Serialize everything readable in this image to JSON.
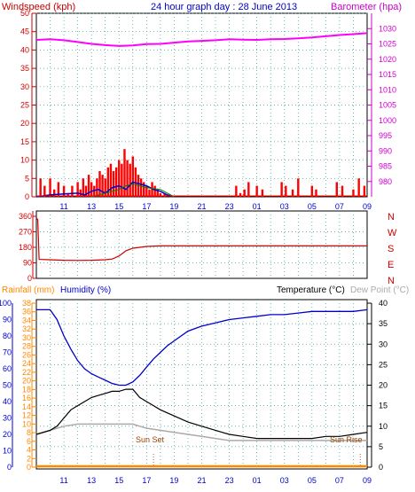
{
  "header": {
    "title": "24 hour graph day : 28 June 2013",
    "wind_label": "Windspeed (kph)",
    "baro_label": "Barometer (hpa)",
    "rain_label": "Rainfall (mm)",
    "hum_label": "Humidity (%)",
    "temp_label": "Temperature (°C)",
    "dew_label": "Dew Point (°C)",
    "sunset_label": "Sun Set",
    "sunrise_label": "Sun Rise"
  },
  "colors": {
    "wind": "#ff0000",
    "gust_blue": "#0000cc",
    "gust_green": "#008000",
    "baro": "#ff00ff",
    "dir": "#cc0000",
    "hum": "#0000cc",
    "temp": "#000000",
    "dew": "#aaaaaa",
    "rain": "#ff8800",
    "title": "#0000cc",
    "axis_left": "#cc0000",
    "axis_right": "#cc00cc",
    "axis_temp": "#000000",
    "axis_rain": "#ff8800",
    "axis_hum": "#0000cc"
  },
  "chart_data": [
    {
      "type": "bar",
      "title": "24 hour graph day : 28 June 2013",
      "xlabel": "",
      "x_ticks": [
        "11",
        "13",
        "15",
        "17",
        "19",
        "21",
        "23",
        "01",
        "03",
        "05",
        "07",
        "09"
      ],
      "y_left": {
        "label": "Windspeed (kph)",
        "ticks": [
          0,
          5,
          10,
          15,
          20,
          25,
          30,
          35,
          40,
          45,
          50
        ],
        "range": [
          0,
          50
        ]
      },
      "y_right": {
        "label": "Barometer (hpa)",
        "ticks": [
          980,
          985,
          990,
          995,
          1000,
          1005,
          1010,
          1015,
          1020,
          1025,
          1030
        ],
        "range": [
          975,
          1035
        ]
      },
      "grid": true,
      "series": [
        {
          "name": "Windspeed (kph)",
          "kind": "bars",
          "hours": [
            9.3,
            9.6,
            10,
            10.3,
            10.6,
            11,
            11.3,
            11.6,
            12,
            12.2,
            12.4,
            12.6,
            12.8,
            13,
            13.2,
            13.4,
            13.6,
            13.8,
            14,
            14.2,
            14.4,
            14.6,
            14.8,
            15,
            15.2,
            15.4,
            15.6,
            15.8,
            16,
            16.2,
            16.4,
            16.6,
            16.8,
            17,
            17.2,
            17.4,
            17.6,
            17.8,
            18,
            18.3,
            23.5,
            23.8,
            24.1,
            24.4,
            25,
            25.4,
            26.8,
            27.1,
            27.6,
            28,
            29,
            29.3,
            30.8,
            31.2,
            32,
            32.4,
            32.8
          ],
          "values": [
            5,
            3,
            5,
            2,
            4,
            3,
            1,
            3,
            4,
            2,
            5,
            3,
            6,
            4,
            3,
            5,
            7,
            6,
            5,
            8,
            9,
            7,
            8,
            10,
            9,
            13,
            10,
            9,
            11,
            8,
            6,
            5,
            4,
            3,
            2,
            4,
            3,
            2,
            1,
            1,
            3,
            1,
            2,
            4,
            3,
            2,
            4,
            3,
            2,
            5,
            3,
            2,
            4,
            3,
            2,
            5,
            3
          ]
        },
        {
          "name": "Gust",
          "kind": "line",
          "hours": [
            9,
            10,
            11,
            12,
            12.5,
            13,
            13.5,
            14,
            14.5,
            15,
            15.5,
            16,
            16.5,
            17,
            17.5,
            18,
            18.5,
            19
          ],
          "values": [
            0,
            0.5,
            0.8,
            1,
            0.5,
            1.5,
            2,
            1,
            2.5,
            3,
            2,
            4,
            3.5,
            3,
            2,
            1.5,
            0.5,
            0
          ]
        },
        {
          "name": "Gust2",
          "kind": "line",
          "hours": [
            13,
            14,
            15,
            15.5,
            16,
            16.5,
            17,
            18,
            19
          ],
          "values": [
            0,
            1,
            2,
            3,
            3.5,
            3,
            2.5,
            2,
            0
          ]
        },
        {
          "name": "Barometer (hpa)",
          "kind": "line",
          "hours": [
            9,
            10,
            11,
            12,
            13,
            14,
            15,
            16,
            17,
            18,
            19,
            20,
            21,
            22,
            23,
            24,
            25,
            26,
            27,
            28,
            29,
            30,
            31,
            32,
            33
          ],
          "values": [
            1026.3,
            1026.5,
            1026.2,
            1025.6,
            1025,
            1024.6,
            1024.3,
            1024.5,
            1024.9,
            1025,
            1025.4,
            1025.8,
            1026,
            1026.2,
            1026.5,
            1026.4,
            1026.3,
            1026.5,
            1026.6,
            1026.8,
            1027.1,
            1027.5,
            1027.9,
            1028.2,
            1028.5
          ]
        }
      ]
    },
    {
      "type": "line",
      "title": "",
      "y_left": {
        "label": "",
        "ticks": [
          0,
          90,
          180,
          270,
          360
        ],
        "range": [
          0,
          360
        ]
      },
      "y_right": {
        "label": "",
        "ticks": [
          "N",
          "W",
          "S",
          "E",
          "N"
        ]
      },
      "grid": true,
      "series": [
        {
          "name": "Wind direction",
          "hours": [
            9,
            9.1,
            9.2,
            10,
            11,
            12,
            13,
            14,
            14.5,
            15,
            15.5,
            16,
            16.5,
            17,
            18,
            19,
            20,
            21,
            22,
            23,
            24,
            25,
            26,
            27,
            28,
            29,
            30,
            31,
            32,
            33
          ],
          "values": [
            350,
            340,
            110,
            108,
            105,
            104,
            105,
            108,
            112,
            130,
            160,
            175,
            180,
            185,
            188,
            188,
            188,
            188,
            188,
            188,
            188,
            188,
            188,
            188,
            188,
            188,
            188,
            188,
            188,
            188
          ]
        }
      ]
    },
    {
      "type": "line",
      "title": "",
      "y_left_outer": {
        "label": "Rainfall (mm)",
        "ticks": [
          0,
          2,
          4,
          6,
          8,
          10,
          12,
          14,
          16,
          18,
          20,
          22,
          24,
          26,
          28,
          30,
          32,
          34,
          36,
          38
        ],
        "range": [
          0,
          38
        ]
      },
      "y_left_inner": {
        "label": "Humidity (%)",
        "ticks": [
          0,
          10,
          20,
          30,
          40,
          50,
          60,
          70,
          80,
          90,
          100
        ],
        "range": [
          0,
          100
        ]
      },
      "y_right": {
        "label": "Temperature (°C)",
        "ticks": [
          0,
          5,
          10,
          15,
          20,
          25,
          30,
          35,
          40
        ],
        "range": [
          0,
          40
        ]
      },
      "annotations": [
        {
          "text": "Sun Set",
          "hour": 17.5
        },
        {
          "text": "Sun Rise",
          "hour": 32.5
        }
      ],
      "grid": true,
      "series": [
        {
          "name": "Humidity (%)",
          "axis": "hum",
          "hours": [
            9,
            10,
            10.5,
            11,
            11.5,
            12,
            12.5,
            13,
            13.5,
            14,
            14.5,
            15,
            15.5,
            16,
            16.5,
            17,
            17.5,
            18,
            18.5,
            19,
            20,
            21,
            22,
            23,
            24,
            25,
            26,
            27,
            28,
            29,
            30,
            31,
            32,
            33
          ],
          "values": [
            96,
            96,
            90,
            80,
            72,
            65,
            60,
            57,
            55,
            53,
            51,
            50,
            50,
            52,
            56,
            61,
            66,
            70,
            74,
            77,
            83,
            86,
            88,
            90,
            91,
            92,
            93,
            93,
            94,
            95,
            95,
            95,
            95,
            96
          ]
        },
        {
          "name": "Temperature (°C)",
          "axis": "temp",
          "hours": [
            9,
            10,
            10.5,
            11,
            11.5,
            12,
            12.5,
            13,
            13.5,
            14,
            14.5,
            15,
            15.5,
            16,
            16.5,
            17,
            17.5,
            18,
            19,
            20,
            21,
            22,
            23,
            24,
            25,
            26,
            27,
            28,
            29,
            30,
            31,
            32,
            33
          ],
          "values": [
            8,
            9,
            10,
            12,
            14,
            15,
            16,
            17,
            17.5,
            18,
            18.5,
            18.5,
            19,
            19,
            17,
            16,
            15,
            14,
            12.5,
            11,
            10,
            9,
            8,
            7.5,
            7,
            7,
            7,
            7,
            7,
            7.5,
            7.5,
            8,
            8.5
          ]
        },
        {
          "name": "Dew Point (°C)",
          "axis": "temp",
          "hours": [
            9,
            10,
            11,
            12,
            13,
            14,
            15,
            16,
            16.5,
            17,
            18,
            19,
            20,
            21,
            22,
            23,
            24,
            25,
            26,
            27,
            28,
            29,
            30,
            31,
            32,
            33
          ],
          "values": [
            8,
            9,
            10,
            10.5,
            10.5,
            10.5,
            10.5,
            10.5,
            10,
            9.5,
            9,
            8.5,
            8,
            7.5,
            7,
            6.5,
            6.5,
            6.5,
            6.5,
            6.5,
            6.5,
            6.5,
            6.5,
            6.5,
            6.5,
            6.5
          ]
        },
        {
          "name": "Rainfall (mm)",
          "axis": "rain",
          "hours": [
            9,
            33
          ],
          "values": [
            0,
            0
          ]
        }
      ]
    }
  ]
}
